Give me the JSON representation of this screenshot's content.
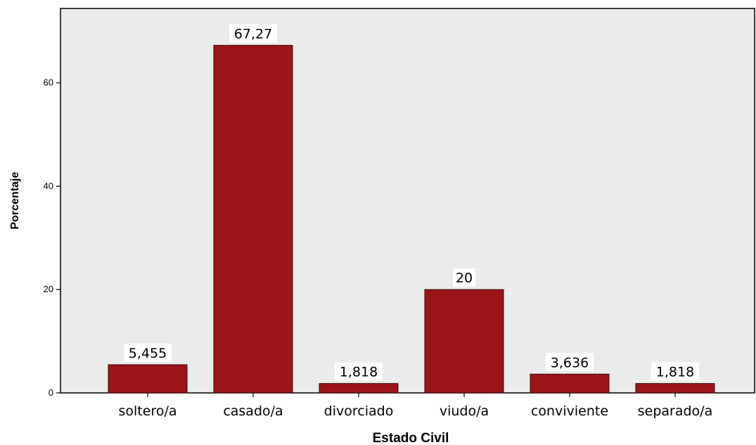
{
  "chart_data": {
    "type": "bar",
    "categories": [
      "soltero/a",
      "casado/a",
      "divorciado",
      "viudo/a",
      "conviviente",
      "separado/a"
    ],
    "values": [
      5.455,
      67.27,
      1.818,
      20,
      3.636,
      1.818
    ],
    "data_labels": [
      "5,455",
      "67,27",
      "1,818",
      "20",
      "3,636",
      "1,818"
    ],
    "xlabel": "Estado Civil",
    "ylabel": "Porcentaje",
    "yticks": [
      0,
      20,
      40,
      60
    ],
    "ytick_labels": [
      "0",
      "20",
      "40",
      "60"
    ],
    "ylim": [
      0,
      74.4
    ],
    "grid": false,
    "legend": "none",
    "colors": {
      "bar": "#9b1419",
      "bar_edge": "#3a0a0a",
      "plot_background": "#ebebeb",
      "label_background": "#ffffff"
    }
  }
}
